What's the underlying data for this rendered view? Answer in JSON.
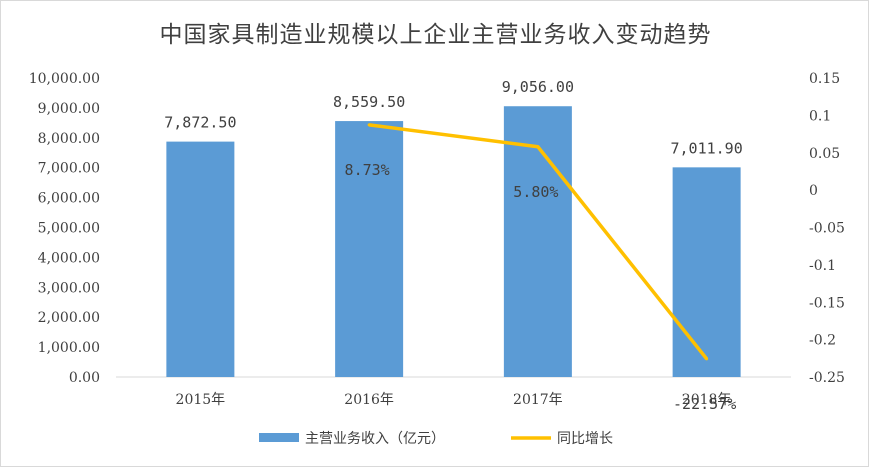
{
  "chart_data": {
    "type": "bar",
    "title": "中国家具制造业规模以上企业主营业务收入变动趋势",
    "categories": [
      "2015年",
      "2016年",
      "2017年",
      "2018年"
    ],
    "series": [
      {
        "name": "主营业务收入（亿元）",
        "type": "bar",
        "axis": "left",
        "color": "#5b9bd5",
        "values": [
          7872.5,
          8559.5,
          9056.0,
          7011.9
        ],
        "labels": [
          "7,872.50",
          "8,559.50",
          "9,056.00",
          "7,011.90"
        ]
      },
      {
        "name": "同比增长",
        "type": "line",
        "axis": "right",
        "color": "#ffc000",
        "values": [
          null,
          0.0873,
          0.058,
          -0.2257
        ],
        "labels": [
          "",
          "8.73%",
          "5.80%",
          "-22.57%"
        ]
      }
    ],
    "y_left": {
      "min": 0,
      "max": 10000,
      "step": 1000,
      "tick_labels": [
        "0.00",
        "1,000.00",
        "2,000.00",
        "3,000.00",
        "4,000.00",
        "5,000.00",
        "6,000.00",
        "7,000.00",
        "8,000.00",
        "9,000.00",
        "10,000.00"
      ]
    },
    "y_right": {
      "min": -0.25,
      "max": 0.15,
      "step": 0.05,
      "tick_labels": [
        "-0.25",
        "-0.2",
        "-0.15",
        "-0.1",
        "-0.05",
        "0",
        "0.05",
        "0.1",
        "0.15"
      ]
    },
    "legend_position": "bottom",
    "grid": false
  }
}
